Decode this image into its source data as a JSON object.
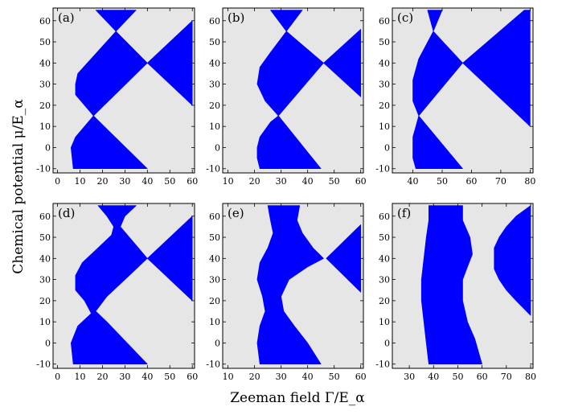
{
  "figure": {
    "ylabel": "Chemical potential μ/E_α",
    "xlabel": "Zeeman field Γ/E_α"
  },
  "colors": {
    "topological_fill": "#0000ff",
    "trivial_fill": "#e6e6e6",
    "frame": "#000000"
  },
  "chart_data": [
    {
      "type": "area",
      "label": "(a)",
      "xlim": [
        -2,
        61
      ],
      "ylim": [
        -12,
        66
      ],
      "xticks": [
        0,
        10,
        20,
        30,
        40,
        50,
        60
      ],
      "yticks": [
        -10,
        0,
        10,
        20,
        30,
        40,
        50,
        60
      ],
      "regions": [
        {
          "name": "lower lobe",
          "points": [
            [
              40,
              -10
            ],
            [
              7,
              -10
            ],
            [
              6,
              0
            ],
            [
              8,
              5
            ],
            [
              16,
              15
            ],
            [
              40,
              -10
            ]
          ]
        },
        {
          "name": "central lobe",
          "points": [
            [
              16,
              15
            ],
            [
              8,
              25
            ],
            [
              8,
              30
            ],
            [
              9,
              35
            ],
            [
              26,
              55
            ],
            [
              40,
              40
            ],
            [
              16,
              15
            ]
          ]
        },
        {
          "name": "right wedge",
          "points": [
            [
              40,
              40
            ],
            [
              60,
              60
            ],
            [
              60,
              20
            ],
            [
              40,
              40
            ]
          ]
        },
        {
          "name": "top lobe",
          "points": [
            [
              26,
              55
            ],
            [
              17,
              65
            ],
            [
              35,
              65
            ],
            [
              26,
              55
            ]
          ]
        }
      ]
    },
    {
      "type": "area",
      "label": "(b)",
      "xlim": [
        8,
        61
      ],
      "ylim": [
        -12,
        66
      ],
      "xticks": [
        10,
        20,
        30,
        40,
        50,
        60
      ],
      "yticks": [
        -10,
        0,
        10,
        20,
        30,
        40,
        50,
        60
      ],
      "regions": [
        {
          "name": "lower lobe",
          "points": [
            [
              45,
              -10
            ],
            [
              22,
              -10
            ],
            [
              21,
              -5
            ],
            [
              21,
              0
            ],
            [
              22,
              5
            ],
            [
              26,
              12
            ],
            [
              29,
              15
            ],
            [
              45,
              -10
            ]
          ]
        },
        {
          "name": "central lobe",
          "points": [
            [
              29,
              15
            ],
            [
              24,
              22
            ],
            [
              21,
              30
            ],
            [
              22,
              38
            ],
            [
              26,
              45
            ],
            [
              32,
              55
            ],
            [
              46,
              40
            ],
            [
              29,
              15
            ]
          ]
        },
        {
          "name": "right wedge",
          "points": [
            [
              46,
              40
            ],
            [
              60,
              56
            ],
            [
              60,
              24
            ],
            [
              46,
              40
            ]
          ]
        },
        {
          "name": "top lobe",
          "points": [
            [
              32,
              55
            ],
            [
              26,
              65
            ],
            [
              38,
              65
            ],
            [
              32,
              55
            ]
          ]
        }
      ]
    },
    {
      "type": "area",
      "label": "(c)",
      "xlim": [
        33,
        81
      ],
      "ylim": [
        -12,
        66
      ],
      "xticks": [
        40,
        50,
        60,
        70,
        80
      ],
      "yticks": [
        -10,
        0,
        10,
        20,
        30,
        40,
        50,
        60
      ],
      "regions": [
        {
          "name": "lower lobe",
          "points": [
            [
              57,
              -10
            ],
            [
              41,
              -10
            ],
            [
              40,
              -5
            ],
            [
              40,
              5
            ],
            [
              41,
              10
            ],
            [
              42,
              15
            ],
            [
              57,
              -10
            ]
          ]
        },
        {
          "name": "central lobe",
          "points": [
            [
              42,
              15
            ],
            [
              40,
              22
            ],
            [
              40,
              32
            ],
            [
              42,
              42
            ],
            [
              47,
              55
            ],
            [
              57,
              40
            ],
            [
              42,
              15
            ]
          ]
        },
        {
          "name": "right wedge",
          "points": [
            [
              57,
              40
            ],
            [
              78,
              65
            ],
            [
              80,
              65
            ],
            [
              80,
              10
            ],
            [
              57,
              40
            ]
          ]
        },
        {
          "name": "top lobe",
          "points": [
            [
              47,
              55
            ],
            [
              45,
              65
            ],
            [
              50,
              65
            ],
            [
              47,
              55
            ]
          ]
        }
      ]
    },
    {
      "type": "area",
      "label": "(d)",
      "xlim": [
        -2,
        61
      ],
      "ylim": [
        -12,
        66
      ],
      "xticks": [
        0,
        10,
        20,
        30,
        40,
        50,
        60
      ],
      "yticks": [
        -10,
        0,
        10,
        20,
        30,
        40,
        50,
        60
      ],
      "regions": [
        {
          "name": "left band",
          "points": [
            [
              7,
              -10
            ],
            [
              6,
              0
            ],
            [
              9,
              8
            ],
            [
              15,
              14
            ],
            [
              12,
              20
            ],
            [
              8,
              25
            ],
            [
              8,
              32
            ],
            [
              11,
              38
            ],
            [
              18,
              45
            ],
            [
              24,
              51
            ],
            [
              25,
              55
            ],
            [
              22,
              60
            ],
            [
              18,
              65
            ],
            [
              35,
              65
            ],
            [
              30,
              60
            ],
            [
              28,
              55
            ],
            [
              32,
              50
            ],
            [
              40,
              40
            ],
            [
              30,
              30
            ],
            [
              22,
              22
            ],
            [
              17,
              15
            ],
            [
              22,
              10
            ],
            [
              40,
              -10
            ],
            [
              7,
              -10
            ]
          ]
        },
        {
          "name": "right wedge",
          "points": [
            [
              40,
              40
            ],
            [
              60,
              60
            ],
            [
              60,
              20
            ],
            [
              40,
              40
            ]
          ]
        }
      ]
    },
    {
      "type": "area",
      "label": "(e)",
      "xlim": [
        8,
        61
      ],
      "ylim": [
        -12,
        66
      ],
      "xticks": [
        10,
        20,
        30,
        40,
        50,
        60
      ],
      "yticks": [
        -10,
        0,
        10,
        20,
        30,
        40,
        50,
        60
      ],
      "regions": [
        {
          "name": "left band",
          "points": [
            [
              22,
              -10
            ],
            [
              21,
              0
            ],
            [
              22,
              8
            ],
            [
              24,
              15
            ],
            [
              23,
              22
            ],
            [
              21,
              30
            ],
            [
              22,
              38
            ],
            [
              25,
              45
            ],
            [
              27,
              52
            ],
            [
              26,
              58
            ],
            [
              25,
              65
            ],
            [
              37,
              65
            ],
            [
              36,
              58
            ],
            [
              38,
              52
            ],
            [
              42,
              45
            ],
            [
              46,
              40
            ],
            [
              40,
              36
            ],
            [
              33,
              30
            ],
            [
              30,
              22
            ],
            [
              31,
              15
            ],
            [
              35,
              8
            ],
            [
              40,
              0
            ],
            [
              45,
              -10
            ],
            [
              22,
              -10
            ]
          ]
        },
        {
          "name": "right wedge",
          "points": [
            [
              47,
              40
            ],
            [
              60,
              56
            ],
            [
              60,
              24
            ],
            [
              47,
              40
            ]
          ]
        }
      ]
    },
    {
      "type": "area",
      "label": "(f)",
      "xlim": [
        23,
        81
      ],
      "ylim": [
        -12,
        66
      ],
      "xticks": [
        30,
        40,
        50,
        60,
        70,
        80
      ],
      "yticks": [
        -10,
        0,
        10,
        20,
        30,
        40,
        50,
        60
      ],
      "regions": [
        {
          "name": "left band",
          "points": [
            [
              38,
              -10
            ],
            [
              37,
              0
            ],
            [
              36,
              10
            ],
            [
              35,
              20
            ],
            [
              35,
              30
            ],
            [
              36,
              40
            ],
            [
              37,
              50
            ],
            [
              38,
              58
            ],
            [
              38,
              65
            ],
            [
              52,
              65
            ],
            [
              52,
              58
            ],
            [
              55,
              50
            ],
            [
              56,
              42
            ],
            [
              54,
              36
            ],
            [
              52,
              30
            ],
            [
              52,
              20
            ],
            [
              54,
              10
            ],
            [
              57,
              2
            ],
            [
              60,
              -10
            ],
            [
              38,
              -10
            ]
          ]
        },
        {
          "name": "right wedge",
          "points": [
            [
              80,
              65
            ],
            [
              74,
              60
            ],
            [
              70,
              55
            ],
            [
              67,
              50
            ],
            [
              65,
              45
            ],
            [
              65,
              40
            ],
            [
              65,
              35
            ],
            [
              67,
              30
            ],
            [
              70,
              25
            ],
            [
              74,
              20
            ],
            [
              80,
              13
            ],
            [
              80,
              65
            ]
          ]
        }
      ]
    }
  ]
}
